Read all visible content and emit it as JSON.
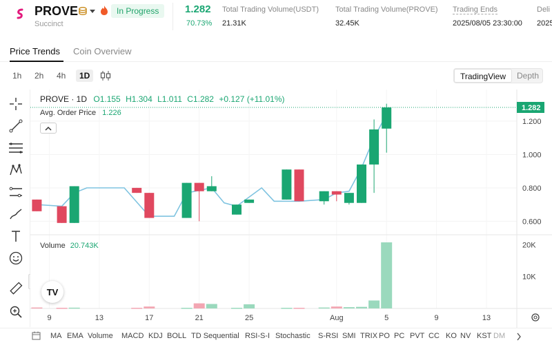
{
  "header": {
    "symbol": "PROVE",
    "project": "Succinct",
    "status": "In Progress",
    "price": "1.282",
    "change": "70.73%",
    "stats": [
      {
        "label": "Total Trading Volume(USDT)",
        "value": "21.31K"
      },
      {
        "label": "Total Trading Volume(PROVE)",
        "value": "32.45K"
      },
      {
        "label": "Trading Ends",
        "value": "2025/08/05 23:30:00"
      },
      {
        "label": "Deli",
        "value": "2025"
      }
    ],
    "colors": {
      "accent": "#1aa672",
      "logo": "#e2197c",
      "fire": "#f05a28"
    }
  },
  "tabs": [
    {
      "label": "Price Trends",
      "active": true
    },
    {
      "label": "Coin Overview",
      "active": false
    }
  ],
  "toolbar": {
    "timeframes": [
      "1h",
      "2h",
      "4h",
      "1D"
    ],
    "active_timeframe": "1D",
    "view_options": [
      "TradingView",
      "Depth"
    ],
    "active_view": "TradingView"
  },
  "tools": [
    "crosshair-icon",
    "trendline-icon",
    "fib-icon",
    "pattern-icon",
    "prediction-icon",
    "brush-icon",
    "text-icon",
    "emoji-icon",
    "ruler-icon",
    "zoom-in-icon"
  ],
  "legend": {
    "pair": "PROVE · 1D",
    "o": "O1.155",
    "h": "H1.304",
    "l": "L1.011",
    "c": "C1.282",
    "chg": "+0.127 (+11.01%)"
  },
  "avg_order_price": {
    "label": "Avg. Order Price",
    "value": "1.226"
  },
  "volume": {
    "label": "Volume",
    "value": "20.743K"
  },
  "indicators": [
    "MA",
    "EMA",
    "Volume",
    "MACD",
    "KDJ",
    "BOLL",
    "TD Sequential",
    "RSI-S-I",
    "Stochastic",
    "S-RSI",
    "SMI",
    "TRIX",
    "PO",
    "PC",
    "PVT",
    "CC",
    "KO",
    "NV",
    "KST",
    "DM"
  ],
  "chart_data": {
    "type": "candlestick",
    "price_axis": {
      "ticks": [
        0.6,
        0.8,
        1.0,
        1.2
      ],
      "labels": [
        "0.600",
        "0.800",
        "1.000",
        "1.200"
      ],
      "last_price_label": "1.282",
      "last_price": 1.282
    },
    "volume_axis": {
      "ticks": [
        10000,
        20000
      ],
      "labels": [
        "10K",
        "20K"
      ]
    },
    "x_labels": [
      {
        "day": 0,
        "label": "9"
      },
      {
        "day": 4,
        "label": "13"
      },
      {
        "day": 8,
        "label": "17"
      },
      {
        "day": 12,
        "label": "21"
      },
      {
        "day": 16,
        "label": "25"
      },
      {
        "day": 23,
        "label": "Aug"
      },
      {
        "day": 27,
        "label": "5"
      },
      {
        "day": 31,
        "label": "9"
      },
      {
        "day": 35,
        "label": "13"
      }
    ],
    "candles": [
      {
        "day": -1,
        "o": 0.73,
        "h": 0.73,
        "l": 0.66,
        "c": 0.66,
        "v": 300
      },
      {
        "day": 1,
        "o": 0.69,
        "h": 0.69,
        "l": 0.59,
        "c": 0.59,
        "v": 200
      },
      {
        "day": 2,
        "o": 0.59,
        "h": 0.81,
        "l": 0.59,
        "c": 0.81,
        "v": 250
      },
      {
        "day": 7,
        "o": 0.8,
        "h": 0.8,
        "l": 0.77,
        "c": 0.77,
        "v": 200
      },
      {
        "day": 8,
        "o": 0.77,
        "h": 0.77,
        "l": 0.62,
        "c": 0.62,
        "v": 600
      },
      {
        "day": 11,
        "o": 0.62,
        "h": 0.83,
        "l": 0.62,
        "c": 0.83,
        "v": 200
      },
      {
        "day": 12,
        "o": 0.83,
        "h": 0.83,
        "l": 0.6,
        "c": 0.78,
        "v": 1600
      },
      {
        "day": 13,
        "o": 0.78,
        "h": 0.87,
        "l": 0.78,
        "c": 0.81,
        "v": 1400
      },
      {
        "day": 15,
        "o": 0.64,
        "h": 0.7,
        "l": 0.64,
        "c": 0.7,
        "v": 200
      },
      {
        "day": 16,
        "o": 0.71,
        "h": 0.73,
        "l": 0.71,
        "c": 0.73,
        "v": 1300
      },
      {
        "day": 19,
        "o": 0.73,
        "h": 0.91,
        "l": 0.73,
        "c": 0.91,
        "v": 200
      },
      {
        "day": 20,
        "o": 0.91,
        "h": 0.91,
        "l": 0.72,
        "c": 0.72,
        "v": 200
      },
      {
        "day": 22,
        "o": 0.72,
        "h": 0.78,
        "l": 0.7,
        "c": 0.78,
        "v": 300
      },
      {
        "day": 23,
        "o": 0.78,
        "h": 0.78,
        "l": 0.72,
        "c": 0.76,
        "v": 600
      },
      {
        "day": 24,
        "o": 0.71,
        "h": 0.77,
        "l": 0.7,
        "c": 0.77,
        "v": 400
      },
      {
        "day": 25,
        "o": 0.71,
        "h": 0.94,
        "l": 0.71,
        "c": 0.94,
        "v": 500
      },
      {
        "day": 26,
        "o": 0.94,
        "h": 1.21,
        "l": 0.77,
        "c": 1.15,
        "v": 2500
      },
      {
        "day": 27,
        "o": 1.155,
        "h": 1.304,
        "l": 1.011,
        "c": 1.282,
        "v": 20743
      }
    ],
    "avg_line": [
      {
        "day": -1,
        "v": 0.7
      },
      {
        "day": 1,
        "v": 0.69
      },
      {
        "day": 2,
        "v": 0.77
      },
      {
        "day": 3,
        "v": 0.8
      },
      {
        "day": 6,
        "v": 0.8
      },
      {
        "day": 8,
        "v": 0.63
      },
      {
        "day": 10,
        "v": 0.63
      },
      {
        "day": 11,
        "v": 0.77
      },
      {
        "day": 13,
        "v": 0.8
      },
      {
        "day": 14,
        "v": 0.71
      },
      {
        "day": 15,
        "v": 0.69
      },
      {
        "day": 17,
        "v": 0.8
      },
      {
        "day": 18,
        "v": 0.72
      },
      {
        "day": 20,
        "v": 0.72
      },
      {
        "day": 22,
        "v": 0.73
      },
      {
        "day": 23,
        "v": 0.77
      },
      {
        "day": 24,
        "v": 0.78
      },
      {
        "day": 25,
        "v": 0.92
      },
      {
        "day": 26,
        "v": 1.1
      },
      {
        "day": 27,
        "v": 1.24
      }
    ]
  }
}
